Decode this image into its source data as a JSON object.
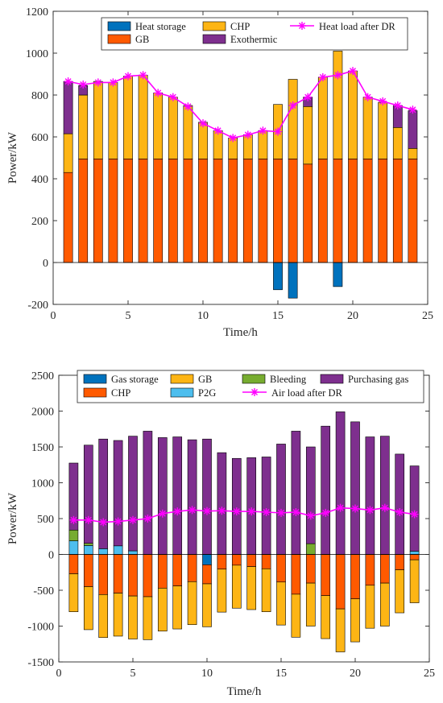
{
  "chart_data": [
    {
      "type": "bar",
      "stacked": true,
      "xlabel": "Time/h",
      "ylabel": "Power/kW",
      "xlim": [
        0,
        25
      ],
      "ylim": [
        -200,
        1200
      ],
      "xticks": [
        0,
        5,
        10,
        15,
        20,
        25
      ],
      "yticks": [
        -200,
        0,
        200,
        400,
        600,
        800,
        1000,
        1200
      ],
      "x": [
        1,
        2,
        3,
        4,
        5,
        6,
        7,
        8,
        9,
        10,
        11,
        12,
        13,
        14,
        15,
        16,
        17,
        18,
        19,
        20,
        21,
        22,
        23,
        24
      ],
      "grid": false,
      "legend_position": "top",
      "series": [
        {
          "name": "Heat storage",
          "color": "#0072BD",
          "values": [
            0,
            0,
            0,
            0,
            0,
            0,
            0,
            0,
            0,
            0,
            0,
            0,
            0,
            0,
            -130,
            -170,
            0,
            0,
            -115,
            0,
            0,
            0,
            0,
            0
          ]
        },
        {
          "name": "GB",
          "color": "#FF5A00",
          "values": [
            430,
            495,
            495,
            495,
            495,
            495,
            495,
            495,
            495,
            495,
            495,
            495,
            495,
            495,
            495,
            495,
            470,
            495,
            495,
            495,
            495,
            495,
            495,
            495
          ]
        },
        {
          "name": "CHP",
          "color": "#FDB515",
          "values": [
            185,
            305,
            370,
            365,
            395,
            400,
            315,
            295,
            255,
            175,
            135,
            100,
            115,
            135,
            260,
            380,
            275,
            390,
            515,
            420,
            295,
            270,
            150,
            50
          ]
        },
        {
          "name": "Exothermic",
          "color": "#7E2F8E",
          "values": [
            250,
            45,
            0,
            0,
            0,
            0,
            0,
            0,
            0,
            0,
            0,
            0,
            0,
            0,
            0,
            0,
            45,
            0,
            0,
            0,
            0,
            0,
            105,
            180
          ]
        }
      ],
      "line": {
        "name": "Heat load after DR",
        "color": "#FF00FF",
        "values": [
          865,
          850,
          860,
          860,
          890,
          895,
          810,
          790,
          745,
          665,
          630,
          595,
          610,
          630,
          625,
          750,
          790,
          885,
          895,
          915,
          790,
          770,
          750,
          730
        ]
      }
    },
    {
      "type": "bar",
      "stacked": true,
      "xlabel": "Time/h",
      "ylabel": "Power/kW",
      "xlim": [
        0,
        25
      ],
      "ylim": [
        -1500,
        2500
      ],
      "xticks": [
        0,
        5,
        10,
        15,
        20,
        25
      ],
      "yticks": [
        -1500,
        -1000,
        -500,
        0,
        500,
        1000,
        1500,
        2000,
        2500
      ],
      "x": [
        1,
        2,
        3,
        4,
        5,
        6,
        7,
        8,
        9,
        10,
        11,
        12,
        13,
        14,
        15,
        16,
        17,
        18,
        19,
        20,
        21,
        22,
        23,
        24
      ],
      "grid": false,
      "legend_position": "top",
      "series": [
        {
          "name": "Gas storage",
          "color": "#0072BD",
          "values": [
            0,
            0,
            0,
            0,
            0,
            0,
            0,
            0,
            0,
            -145,
            0,
            0,
            0,
            0,
            0,
            0,
            0,
            0,
            0,
            0,
            0,
            0,
            0,
            0
          ]
        },
        {
          "name": "CHP",
          "color": "#FF5A00",
          "values": [
            -270,
            -450,
            -560,
            -540,
            -580,
            -590,
            -470,
            -440,
            -380,
            -265,
            -205,
            -150,
            -170,
            -200,
            -385,
            -555,
            -400,
            -575,
            -760,
            -620,
            -430,
            -400,
            -215,
            -75
          ]
        },
        {
          "name": "GB",
          "color": "#FDB515",
          "values": [
            -530,
            -600,
            -600,
            -600,
            -600,
            -600,
            -600,
            -600,
            -600,
            -600,
            -600,
            -600,
            -600,
            -600,
            -600,
            -600,
            -600,
            -600,
            -600,
            -600,
            -600,
            -600,
            -600,
            -600
          ]
        },
        {
          "name": "P2G",
          "color": "#4DBEEE",
          "values": [
            190,
            125,
            80,
            120,
            50,
            0,
            0,
            0,
            0,
            0,
            0,
            0,
            0,
            0,
            0,
            0,
            0,
            0,
            0,
            0,
            0,
            0,
            0,
            45
          ]
        },
        {
          "name": "Bleeding",
          "color": "#77AC30",
          "values": [
            150,
            30,
            0,
            0,
            0,
            0,
            0,
            0,
            0,
            0,
            0,
            0,
            0,
            0,
            0,
            0,
            150,
            0,
            0,
            0,
            0,
            0,
            0,
            0
          ]
        },
        {
          "name": "Purchasing gas",
          "color": "#7E2F8E",
          "values": [
            935,
            1370,
            1530,
            1470,
            1600,
            1720,
            1630,
            1640,
            1600,
            1610,
            1420,
            1340,
            1350,
            1360,
            1540,
            1720,
            1350,
            1790,
            1990,
            1850,
            1640,
            1650,
            1400,
            1190
          ]
        }
      ],
      "line": {
        "name": "Air load after DR",
        "color": "#FF00FF",
        "values": [
          480,
          480,
          450,
          460,
          480,
          500,
          570,
          600,
          620,
          605,
          610,
          600,
          600,
          590,
          580,
          590,
          540,
          580,
          650,
          640,
          620,
          650,
          590,
          560
        ]
      }
    }
  ]
}
